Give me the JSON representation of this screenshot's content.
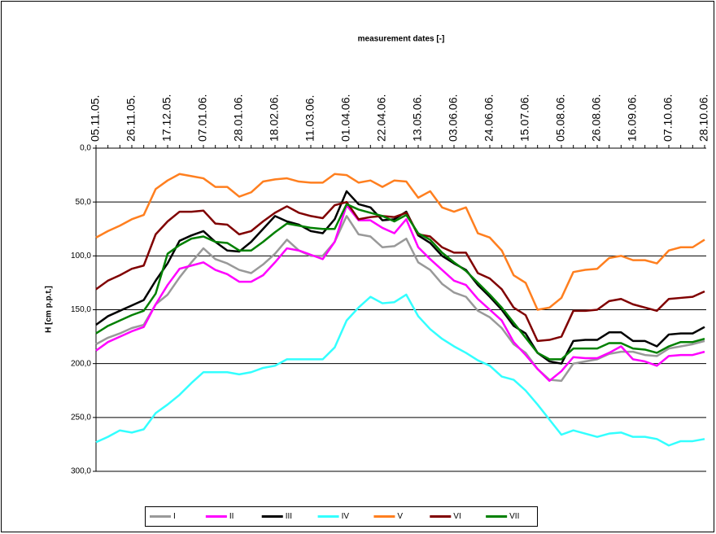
{
  "chart_data": {
    "type": "line",
    "title": "measurement dates [-]",
    "y_label": "H [cm p.p.t.]",
    "categories": [
      "05.11.05.",
      null,
      null,
      "26.11.05.",
      null,
      null,
      "17.12.05.",
      null,
      null,
      "07.01.06.",
      null,
      null,
      "28.01.06.",
      null,
      null,
      "18.02.06.",
      null,
      null,
      "11.03.06.",
      null,
      null,
      "01.04.06.",
      null,
      null,
      "22.04.06.",
      null,
      null,
      "13.05.06.",
      null,
      null,
      "03.06.06.",
      null,
      null,
      "24.06.06.",
      null,
      null,
      "15.07.06.",
      null,
      null,
      "05.08.06.",
      null,
      null,
      "26.08.06.",
      null,
      null,
      "16.09.06.",
      null,
      null,
      "07.10.06.",
      null,
      null,
      "28.10.06."
    ],
    "ylim": [
      0,
      300
    ],
    "y_inverted": true,
    "yticks": [
      {
        "value": 0,
        "label": "0,0"
      },
      {
        "value": 50,
        "label": "50,0"
      },
      {
        "value": 100,
        "label": "100,0"
      },
      {
        "value": 150,
        "label": "150,0"
      },
      {
        "value": 200,
        "label": "200,0"
      },
      {
        "value": 250,
        "label": "250,0"
      },
      {
        "value": 300,
        "label": "300,0"
      }
    ],
    "grid": true,
    "legend": "bottom",
    "series": [
      {
        "name": "I",
        "color": "#999999",
        "values": [
          182,
          176,
          172,
          167,
          164,
          145,
          136,
          120,
          106,
          93,
          103,
          107,
          113,
          116,
          108,
          98,
          85,
          95,
          100,
          100,
          87,
          63,
          80,
          82,
          92,
          91,
          84,
          106,
          113,
          126,
          134,
          138,
          151,
          157,
          167,
          182,
          190,
          205,
          215,
          216,
          200,
          198,
          196,
          191,
          189,
          189,
          192,
          193,
          186,
          184,
          182,
          179
        ]
      },
      {
        "name": "II",
        "color": "#ff00ff",
        "values": [
          188,
          180,
          175,
          170,
          166,
          145,
          127,
          112,
          109,
          106,
          113,
          117,
          124,
          124,
          118,
          106,
          93,
          95,
          99,
          103,
          87,
          53,
          67,
          67,
          74,
          79,
          66,
          92,
          103,
          113,
          123,
          127,
          140,
          150,
          160,
          180,
          192,
          205,
          216,
          207,
          194,
          195,
          195,
          190,
          184,
          196,
          198,
          202,
          193,
          192,
          192,
          189
        ]
      },
      {
        "name": "III",
        "color": "#000000",
        "values": [
          164,
          156,
          151,
          146,
          141,
          123,
          107,
          86,
          81,
          77,
          87,
          95,
          96,
          87,
          75,
          63,
          68,
          71,
          77,
          79,
          66,
          40,
          52,
          55,
          67,
          66,
          59,
          81,
          88,
          100,
          107,
          113,
          127,
          138,
          150,
          165,
          172,
          190,
          198,
          200,
          179,
          178,
          178,
          171,
          171,
          179,
          179,
          184,
          173,
          172,
          172,
          166
        ]
      },
      {
        "name": "IV",
        "color": "#33ffff",
        "values": [
          273,
          268,
          262,
          264,
          261,
          246,
          238,
          229,
          218,
          208,
          208,
          208,
          210,
          208,
          204,
          202,
          196,
          196,
          196,
          196,
          185,
          160,
          148,
          138,
          144,
          143,
          136,
          156,
          168,
          177,
          184,
          190,
          197,
          202,
          212,
          215,
          225,
          238,
          252,
          266,
          262,
          265,
          268,
          265,
          264,
          268,
          268,
          270,
          276,
          272,
          272,
          270
        ]
      },
      {
        "name": "V",
        "color": "#ff7f1f",
        "values": [
          83,
          77,
          72,
          66,
          62,
          38,
          30,
          24,
          26,
          28,
          36,
          36,
          45,
          41,
          31,
          29,
          28,
          31,
          32,
          32,
          24,
          25,
          32,
          30,
          36,
          30,
          31,
          46,
          40,
          55,
          59,
          55,
          79,
          83,
          95,
          118,
          125,
          150,
          148,
          139,
          115,
          113,
          112,
          102,
          100,
          104,
          104,
          107,
          95,
          92,
          92,
          85
        ]
      },
      {
        "name": "VI",
        "color": "#800000",
        "values": [
          131,
          123,
          118,
          112,
          109,
          80,
          68,
          59,
          59,
          58,
          70,
          71,
          80,
          77,
          68,
          60,
          54,
          60,
          63,
          65,
          53,
          50,
          66,
          64,
          63,
          64,
          60,
          80,
          82,
          92,
          97,
          97,
          116,
          121,
          131,
          148,
          155,
          179,
          178,
          175,
          151,
          151,
          150,
          142,
          140,
          145,
          148,
          151,
          140,
          139,
          138,
          133
        ]
      },
      {
        "name": "VII",
        "color": "#008000",
        "values": [
          172,
          165,
          160,
          155,
          151,
          135,
          98,
          90,
          84,
          82,
          87,
          88,
          95,
          95,
          87,
          78,
          70,
          72,
          74,
          75,
          75,
          52,
          57,
          60,
          63,
          68,
          62,
          79,
          85,
          97,
          106,
          114,
          125,
          136,
          148,
          162,
          176,
          190,
          196,
          196,
          186,
          186,
          186,
          181,
          181,
          186,
          187,
          190,
          184,
          180,
          180,
          177
        ]
      }
    ]
  }
}
